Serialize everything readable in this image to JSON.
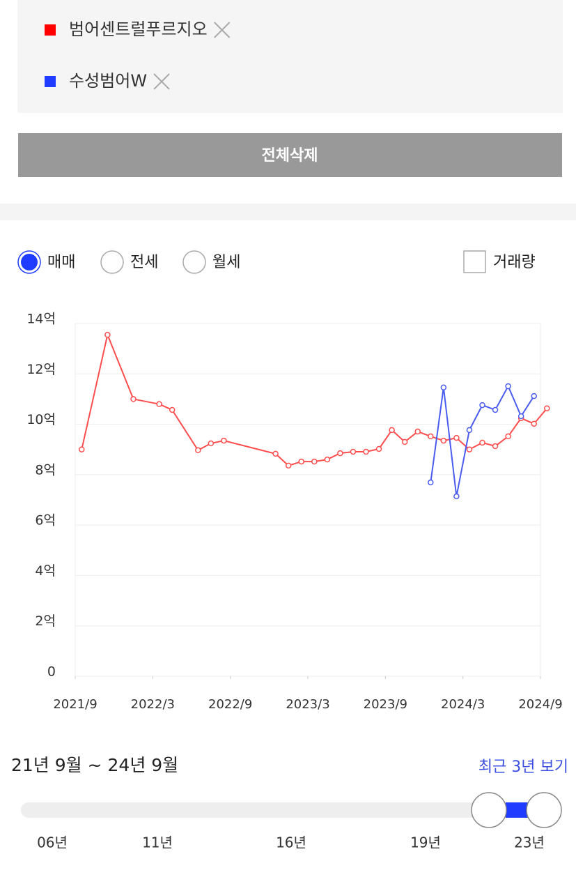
{
  "compare_list": {
    "items": [
      {
        "name": "범어센트럴푸르지오",
        "color": "#ff0000"
      },
      {
        "name": "수성범어W",
        "color": "#1f3cff"
      }
    ]
  },
  "clear_button": "전체삭제",
  "trade_types": {
    "options": [
      "매매",
      "전세",
      "월세"
    ],
    "selected": 0
  },
  "volume_checkbox": {
    "label": "거래량",
    "checked": false
  },
  "chart_data": {
    "type": "line",
    "xlim": [
      "2021/9",
      "2024/9"
    ],
    "xticks": [
      "2021/9",
      "2022/3",
      "2022/9",
      "2023/3",
      "2023/9",
      "2024/3",
      "2024/9"
    ],
    "ylim": [
      0,
      14
    ],
    "yticks": [
      0,
      {
        "value": 2,
        "label": "2억"
      },
      {
        "value": 4,
        "label": "4억"
      },
      {
        "value": 6,
        "label": "6억"
      },
      {
        "value": 8,
        "label": "8억"
      },
      {
        "value": 10,
        "label": "10억"
      },
      {
        "value": 12,
        "label": "12억"
      },
      {
        "value": 14,
        "label": "14억"
      }
    ],
    "grid": true,
    "series": [
      {
        "name": "범어센트럴푸르지오",
        "color": "#ff4d4d",
        "x": [
          "2021/9",
          "2021/11",
          "2022/1",
          "2022/3",
          "2022/4",
          "2022/6",
          "2022/7",
          "2022/8",
          "2022/12",
          "2023/1",
          "2023/2",
          "2023/3",
          "2023/4",
          "2023/5",
          "2023/6",
          "2023/7",
          "2023/8",
          "2023/9",
          "2023/10",
          "2023/11",
          "2023/12",
          "2024/1",
          "2024/2",
          "2024/3",
          "2024/4",
          "2024/5",
          "2024/6",
          "2024/7",
          "2024/8",
          "2024/9"
        ],
        "values": [
          9.0,
          13.55,
          11.0,
          10.8,
          10.57,
          8.97,
          9.24,
          9.35,
          8.83,
          8.36,
          8.52,
          8.52,
          8.6,
          8.85,
          8.91,
          8.91,
          9.02,
          9.77,
          9.3,
          9.71,
          9.52,
          9.35,
          9.46,
          9.0,
          9.27,
          9.13,
          9.52,
          10.24,
          10.02,
          10.63
        ]
      },
      {
        "name": "수성범어W",
        "color": "#4a5cf0",
        "x": [
          "2023/12",
          "2024/1",
          "2024/2",
          "2024/3",
          "2024/4",
          "2024/5",
          "2024/6",
          "2024/7",
          "2024/8"
        ],
        "values": [
          7.69,
          11.46,
          7.14,
          9.77,
          10.76,
          10.57,
          11.51,
          10.32,
          11.12
        ]
      }
    ]
  },
  "period": {
    "range_text": "21년 9월 ~ 24년 9월",
    "recent_link": "최근 3년 보기",
    "slider_labels": [
      "06년",
      "11년",
      "16년",
      "19년",
      "23년"
    ]
  }
}
